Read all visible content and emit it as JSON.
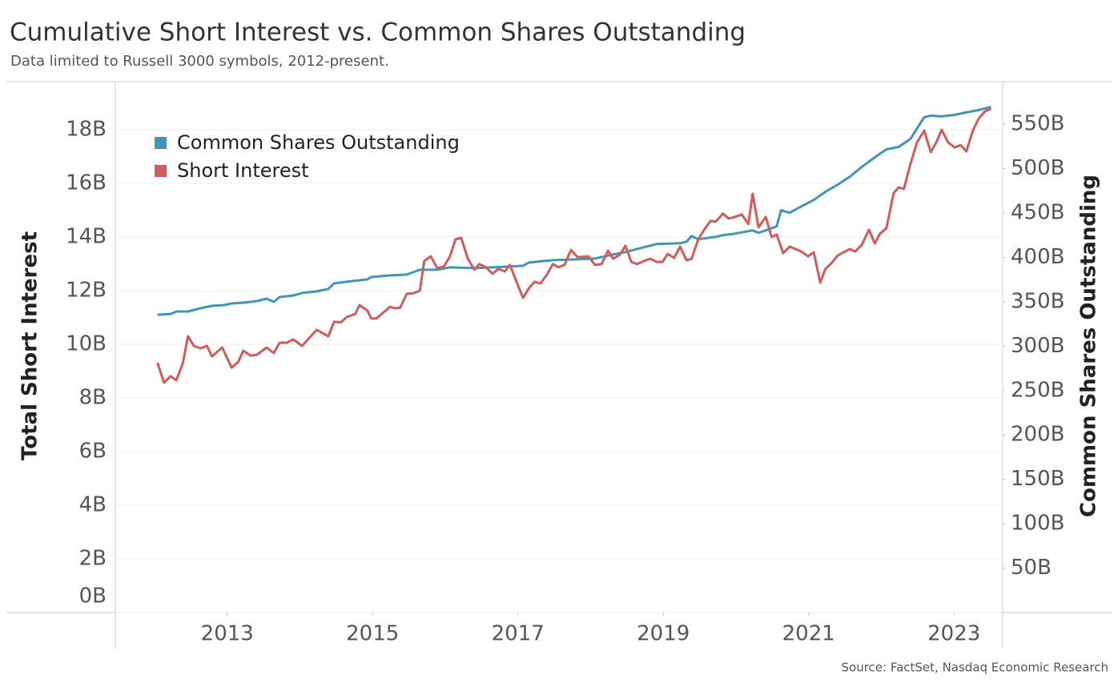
{
  "chart_data": {
    "type": "line",
    "title": "Cumulative Short Interest vs. Common Shares Outstanding",
    "subtitle": "Data limited to Russell 3000 symbols, 2012-present.",
    "source": "Source: FactSet, Nasdaq Economic Research",
    "y_label": "Total Short Interest",
    "y2_label": "Common Shares Outstanding",
    "legend": "upper left",
    "grid": true,
    "xlim": [
      2011.46,
      2023.67
    ],
    "xticks": [
      2013,
      2015,
      2017,
      2019,
      2021,
      2023
    ],
    "ylim": [
      0,
      19.76
    ],
    "yticks": [
      {
        "value": 0,
        "label": "0B"
      },
      {
        "value": 2,
        "label": "2B"
      },
      {
        "value": 4,
        "label": "4B"
      },
      {
        "value": 6,
        "label": "6B"
      },
      {
        "value": 8,
        "label": "8B"
      },
      {
        "value": 10,
        "label": "10B"
      },
      {
        "value": 12,
        "label": "12B"
      },
      {
        "value": 14,
        "label": "14B"
      },
      {
        "value": 16,
        "label": "16B"
      },
      {
        "value": 18,
        "label": "18B"
      }
    ],
    "y2lim": [
      0,
      597
    ],
    "y2ticks": [
      {
        "value": 50,
        "label": "50B"
      },
      {
        "value": 100,
        "label": "100B"
      },
      {
        "value": 150,
        "label": "150B"
      },
      {
        "value": 200,
        "label": "200B"
      },
      {
        "value": 250,
        "label": "250B"
      },
      {
        "value": 300,
        "label": "300B"
      },
      {
        "value": 350,
        "label": "350B"
      },
      {
        "value": 400,
        "label": "400B"
      },
      {
        "value": 450,
        "label": "450B"
      },
      {
        "value": 500,
        "label": "500B"
      },
      {
        "value": 550,
        "label": "550B"
      }
    ],
    "series": [
      {
        "name": "Common Shares Outstanding",
        "color": "#4096b5",
        "axis": "y2",
        "x": [
          2012.04,
          2012.22,
          2012.3,
          2012.46,
          2012.63,
          2012.79,
          2012.96,
          2013.06,
          2013.22,
          2013.41,
          2013.54,
          2013.64,
          2013.72,
          2013.91,
          2014.03,
          2014.23,
          2014.39,
          2014.47,
          2014.64,
          2014.93,
          2014.98,
          2015.24,
          2015.47,
          2015.65,
          2015.89,
          2016.06,
          2016.4,
          2016.65,
          2016.89,
          2017.07,
          2017.15,
          2017.48,
          2017.82,
          2018.06,
          2018.31,
          2018.48,
          2018.73,
          2018.91,
          2019.23,
          2019.32,
          2019.39,
          2019.48,
          2019.72,
          2019.82,
          2019.99,
          2020.17,
          2020.23,
          2020.31,
          2020.41,
          2020.56,
          2020.62,
          2020.74,
          2020.9,
          2021.07,
          2021.23,
          2021.4,
          2021.57,
          2021.73,
          2021.91,
          2022.07,
          2022.24,
          2022.4,
          2022.59,
          2022.68,
          2022.83,
          2023.01,
          2023.17,
          2023.34,
          2023.51
        ],
        "values": [
          335.4,
          336.3,
          339.1,
          339.1,
          342.7,
          345.4,
          346.3,
          348.1,
          349.0,
          350.8,
          353.5,
          349.9,
          355.3,
          357.1,
          359.9,
          361.7,
          364.4,
          370.7,
          372.5,
          375.2,
          377.9,
          379.7,
          380.7,
          386.1,
          386.1,
          388.8,
          387.9,
          388.8,
          389.7,
          390.6,
          394.2,
          396.9,
          397.8,
          398.7,
          403.3,
          406.0,
          411.4,
          415.0,
          415.9,
          417.7,
          424.1,
          420.4,
          423.1,
          425.0,
          426.8,
          429.5,
          430.4,
          427.7,
          430.4,
          434.9,
          453.0,
          450.3,
          457.5,
          464.7,
          473.8,
          481.9,
          491.0,
          501.8,
          512.7,
          521.7,
          524.4,
          533.5,
          557.9,
          559.7,
          558.8,
          560.6,
          563.3,
          566.0,
          569.6
        ]
      },
      {
        "name": "Short Interest",
        "color": "#d45b5b",
        "x": [
          2012.04,
          2012.13,
          2012.22,
          2012.3,
          2012.39,
          2012.46,
          2012.54,
          2012.63,
          2012.72,
          2012.79,
          2012.93,
          2013.06,
          2013.15,
          2013.22,
          2013.32,
          2013.41,
          2013.54,
          2013.64,
          2013.72,
          2013.82,
          2013.91,
          2014.03,
          2014.23,
          2014.39,
          2014.47,
          2014.56,
          2014.64,
          2014.76,
          2014.82,
          2014.93,
          2014.98,
          2015.05,
          2015.15,
          2015.24,
          2015.31,
          2015.38,
          2015.47,
          2015.57,
          2015.65,
          2015.71,
          2015.8,
          2015.89,
          2015.98,
          2016.06,
          2016.14,
          2016.22,
          2016.31,
          2016.4,
          2016.47,
          2016.56,
          2016.65,
          2016.73,
          2016.82,
          2016.89,
          2016.98,
          2017.07,
          2017.15,
          2017.23,
          2017.31,
          2017.4,
          2017.48,
          2017.56,
          2017.64,
          2017.73,
          2017.82,
          2017.97,
          2018.06,
          2018.15,
          2018.24,
          2018.31,
          2018.4,
          2018.48,
          2018.56,
          2018.64,
          2018.73,
          2018.82,
          2018.91,
          2018.99,
          2019.06,
          2019.15,
          2019.23,
          2019.32,
          2019.39,
          2019.48,
          2019.57,
          2019.65,
          2019.72,
          2019.82,
          2019.9,
          2019.99,
          2020.08,
          2020.17,
          2020.23,
          2020.31,
          2020.41,
          2020.49,
          2020.56,
          2020.65,
          2020.74,
          2020.82,
          2020.9,
          2020.99,
          2021.07,
          2021.16,
          2021.23,
          2021.32,
          2021.4,
          2021.48,
          2021.57,
          2021.64,
          2021.73,
          2021.83,
          2021.91,
          2021.98,
          2022.07,
          2022.17,
          2022.24,
          2022.31,
          2022.4,
          2022.49,
          2022.59,
          2022.68,
          2022.76,
          2022.83,
          2022.92,
          2023.01,
          2023.09,
          2023.17,
          2023.26,
          2023.34,
          2023.43,
          2023.51
        ],
        "values": [
          9.31,
          8.57,
          8.81,
          8.66,
          9.31,
          10.3,
          9.94,
          9.85,
          9.94,
          9.55,
          9.88,
          9.13,
          9.34,
          9.76,
          9.58,
          9.61,
          9.88,
          9.67,
          10.06,
          10.06,
          10.18,
          9.94,
          10.54,
          10.3,
          10.84,
          10.81,
          11.01,
          11.13,
          11.46,
          11.25,
          10.96,
          10.96,
          11.19,
          11.4,
          11.34,
          11.37,
          11.88,
          11.91,
          12.0,
          13.1,
          13.28,
          12.84,
          12.9,
          13.25,
          13.91,
          13.97,
          13.19,
          12.78,
          12.99,
          12.87,
          12.63,
          12.81,
          12.72,
          12.96,
          12.33,
          11.73,
          12.09,
          12.33,
          12.27,
          12.6,
          12.99,
          12.87,
          12.96,
          13.52,
          13.25,
          13.28,
          12.96,
          12.99,
          13.49,
          13.19,
          13.34,
          13.67,
          13.07,
          12.99,
          13.1,
          13.19,
          13.07,
          13.07,
          13.37,
          13.22,
          13.64,
          13.13,
          13.19,
          13.91,
          14.3,
          14.6,
          14.57,
          14.87,
          14.69,
          14.75,
          14.84,
          14.48,
          15.61,
          14.36,
          14.75,
          14.0,
          14.09,
          13.4,
          13.64,
          13.55,
          13.46,
          13.28,
          13.43,
          12.3,
          12.81,
          13.04,
          13.31,
          13.43,
          13.55,
          13.46,
          13.7,
          14.27,
          13.76,
          14.12,
          14.33,
          15.64,
          15.85,
          15.79,
          16.72,
          17.52,
          17.97,
          17.16,
          17.55,
          18.0,
          17.52,
          17.34,
          17.43,
          17.19,
          17.97,
          18.42,
          18.69,
          18.78
        ]
      }
    ]
  }
}
